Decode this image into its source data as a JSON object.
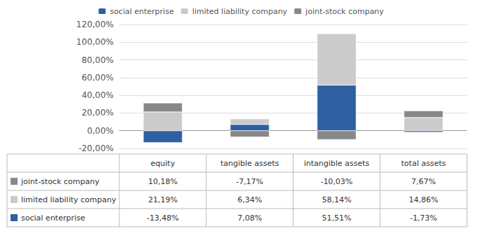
{
  "chart_data": {
    "type": "bar",
    "categories": [
      "equity",
      "tangible assets",
      "intangible assets",
      "total assets"
    ],
    "series": [
      {
        "name": "social enterprise",
        "color": "#2E5FA3",
        "values": [
          -13.48,
          7.08,
          51.51,
          -1.73
        ],
        "value_labels": [
          "-13,48%",
          "7,08%",
          "51,51%",
          "-1,73%"
        ]
      },
      {
        "name": "limited liability company",
        "color": "#CBCBCB",
        "values": [
          21.19,
          6.34,
          58.14,
          14.86
        ],
        "value_labels": [
          "21,19%",
          "6,34%",
          "58,14%",
          "14,86%"
        ]
      },
      {
        "name": "joint-stock company",
        "color": "#888888",
        "values": [
          10.18,
          -7.17,
          -10.03,
          7.67
        ],
        "value_labels": [
          "10,18%",
          "-7,17%",
          "-10,03%",
          "7,67%"
        ]
      }
    ],
    "stacked": true,
    "ylim": [
      -20,
      120
    ],
    "yticks": [
      {
        "value": -20,
        "label": "-20,00%"
      },
      {
        "value": 0,
        "label": "0,00%"
      },
      {
        "value": 20,
        "label": "20,00%"
      },
      {
        "value": 40,
        "label": "40,00%"
      },
      {
        "value": 60,
        "label": "60,00%"
      },
      {
        "value": 80,
        "label": "80,00%"
      },
      {
        "value": 100,
        "label": "100,00%"
      },
      {
        "value": 120,
        "label": "120,00%"
      }
    ],
    "grid": true,
    "legend": "top",
    "tick_labels": "y"
  }
}
